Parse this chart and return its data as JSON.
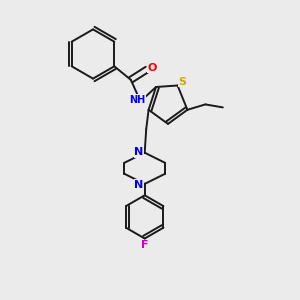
{
  "background_color": "#ebebeb",
  "bond_color": "#1a1a1a",
  "atom_colors": {
    "S": "#ccaa00",
    "N": "#0000ee",
    "O": "#ff0000",
    "F": "#cc00cc",
    "C": "#1a1a1a",
    "H": "#1a1a1a"
  },
  "figsize": [
    3.0,
    3.0
  ],
  "dpi": 100,
  "xlim": [
    0,
    10
  ],
  "ylim": [
    0,
    10
  ]
}
